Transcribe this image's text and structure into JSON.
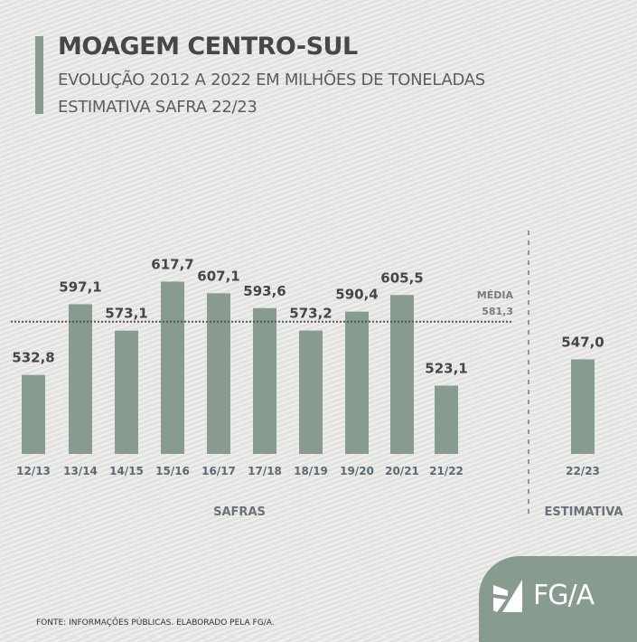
{
  "header": {
    "title": "MOAGEM CENTRO-SUL",
    "subtitle1": "EVOLUÇÃO 2012 A 2022 EM MILHÕES DE TONELADAS",
    "subtitle2": "ESTIMATIVA SAFRA 22/23"
  },
  "chart_data": {
    "type": "bar",
    "title": "MOAGEM CENTRO-SUL",
    "categories": [
      "12/13",
      "13/14",
      "14/15",
      "15/16",
      "16/17",
      "17/18",
      "18/19",
      "19/20",
      "20/21",
      "21/22",
      "22/23"
    ],
    "values": [
      532.8,
      597.1,
      573.1,
      617.7,
      607.1,
      593.6,
      573.2,
      590.4,
      605.5,
      523.1,
      547.0
    ],
    "value_labels": [
      "532,8",
      "597,1",
      "573,1",
      "617,7",
      "607,1",
      "593,6",
      "573,2",
      "590,4",
      "605,5",
      "523,1",
      "547,0"
    ],
    "groups": [
      {
        "label": "SAFRAS",
        "categories": 10
      },
      {
        "label": "ESTIMATIVA",
        "categories": 1
      }
    ],
    "average": {
      "label": "MÉDIA",
      "value": 581.3,
      "value_label": "581,3"
    },
    "ylim": [
      461,
      640
    ],
    "color": "#879b8e"
  },
  "footer": "FONTE: INFORMAÇÕES PÚBLICAS. ELABORADO PELA FG/A.",
  "logo": "FG/A"
}
